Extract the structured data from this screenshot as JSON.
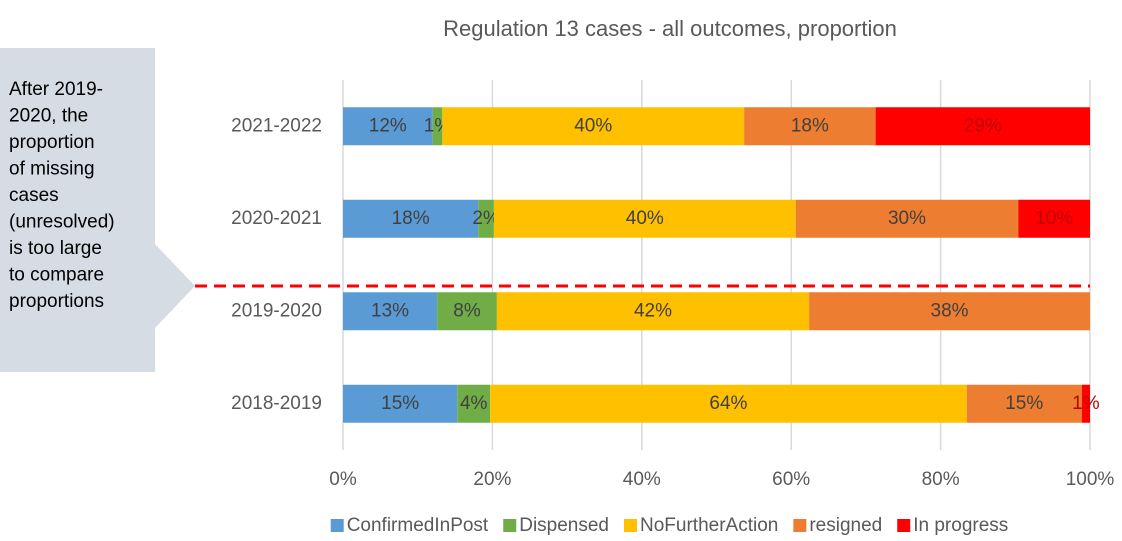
{
  "chart_data": {
    "type": "stacked-barh",
    "title": "Regulation 13 cases - all outcomes, proportion",
    "annotation": [
      "After 2019-",
      "2020, the",
      "proportion",
      "of missing",
      "cases",
      "(unresolved)",
      "is too large",
      "to compare",
      "proportions"
    ],
    "categories": [
      "2021-2022",
      "2020-2021",
      "2019-2020",
      "2018-2019"
    ],
    "series": [
      {
        "name": "ConfirmedInPost",
        "color": "#5b9bd5",
        "values": [
          12,
          18.1,
          12.6,
          15.3
        ],
        "value_labels": [
          "12%",
          "18%",
          "13%",
          "15%"
        ]
      },
      {
        "name": "Dispensed",
        "color": "#70ad47",
        "values": [
          1.3,
          2.1,
          8.0,
          4.4
        ],
        "value_labels": [
          "1%",
          "2%",
          "8%",
          "4%"
        ]
      },
      {
        "name": "NoFurtherAction",
        "color": "#ffc000",
        "values": [
          40.4,
          40.4,
          41.8,
          63.8
        ],
        "value_labels": [
          "40%",
          "40%",
          "42%",
          "64%"
        ]
      },
      {
        "name": "resigned",
        "color": "#ed7d31",
        "values": [
          17.6,
          29.8,
          37.6,
          15.4
        ],
        "value_labels": [
          "18%",
          "30%",
          "38%",
          "15%"
        ]
      },
      {
        "name": "In progress",
        "color": "#ff0000",
        "values": [
          28.7,
          9.6,
          null,
          1.1
        ],
        "value_labels": [
          "29%",
          "10%",
          null,
          "1%"
        ]
      }
    ],
    "xlim": [
      0,
      100
    ],
    "xticks": [
      {
        "value": 0,
        "label": "0%"
      },
      {
        "value": 20,
        "label": "20%"
      },
      {
        "value": 40,
        "label": "40%"
      },
      {
        "value": 60,
        "label": "60%"
      },
      {
        "value": 80,
        "label": "80%"
      },
      {
        "value": 100,
        "label": "100%"
      }
    ],
    "grid": true,
    "legend": "bottom"
  }
}
